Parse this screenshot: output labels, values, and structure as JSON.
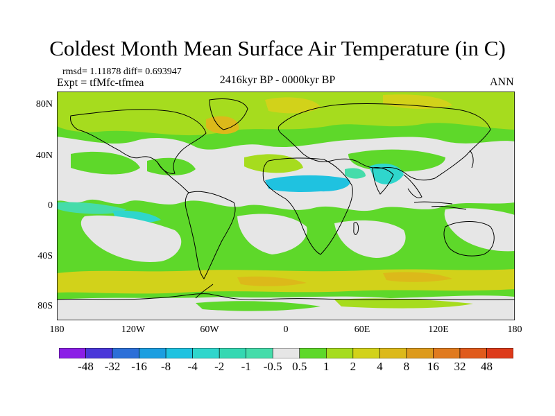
{
  "title": "Coldest Month Mean Surface Air Temperature (in C)",
  "stats": "rmsd= 1.11878  diff= 0.693947",
  "experiment": "Expt = tfMfc-tfmea",
  "period": "2416kyr BP - 0000kyr BP",
  "season": "ANN",
  "lat_labels": [
    "80N",
    "40N",
    "0",
    "40S",
    "80S"
  ],
  "lon_labels": [
    "180",
    "120W",
    "60W",
    "0",
    "60E",
    "120E",
    "180"
  ],
  "colorbar": {
    "labels": [
      "-48",
      "-32",
      "-16",
      "-8",
      "-4",
      "-2",
      "-1",
      "-0.5",
      "0.5",
      "1",
      "2",
      "4",
      "8",
      "16",
      "32",
      "48"
    ],
    "colors": [
      "#8b1ee6",
      "#4a37d9",
      "#2c6fd8",
      "#1c9ee0",
      "#1fc2e0",
      "#2fd6cc",
      "#35d8b2",
      "#45dcaa",
      "#e6e6e6",
      "#5ed82a",
      "#a6dc1e",
      "#d2d21a",
      "#dcb91a",
      "#dd9a1c",
      "#e07a1e",
      "#e05a1c",
      "#dd3a1a"
    ]
  },
  "colors": {
    "ocean_base": "#5ed82a",
    "land_outline": "#000000"
  }
}
